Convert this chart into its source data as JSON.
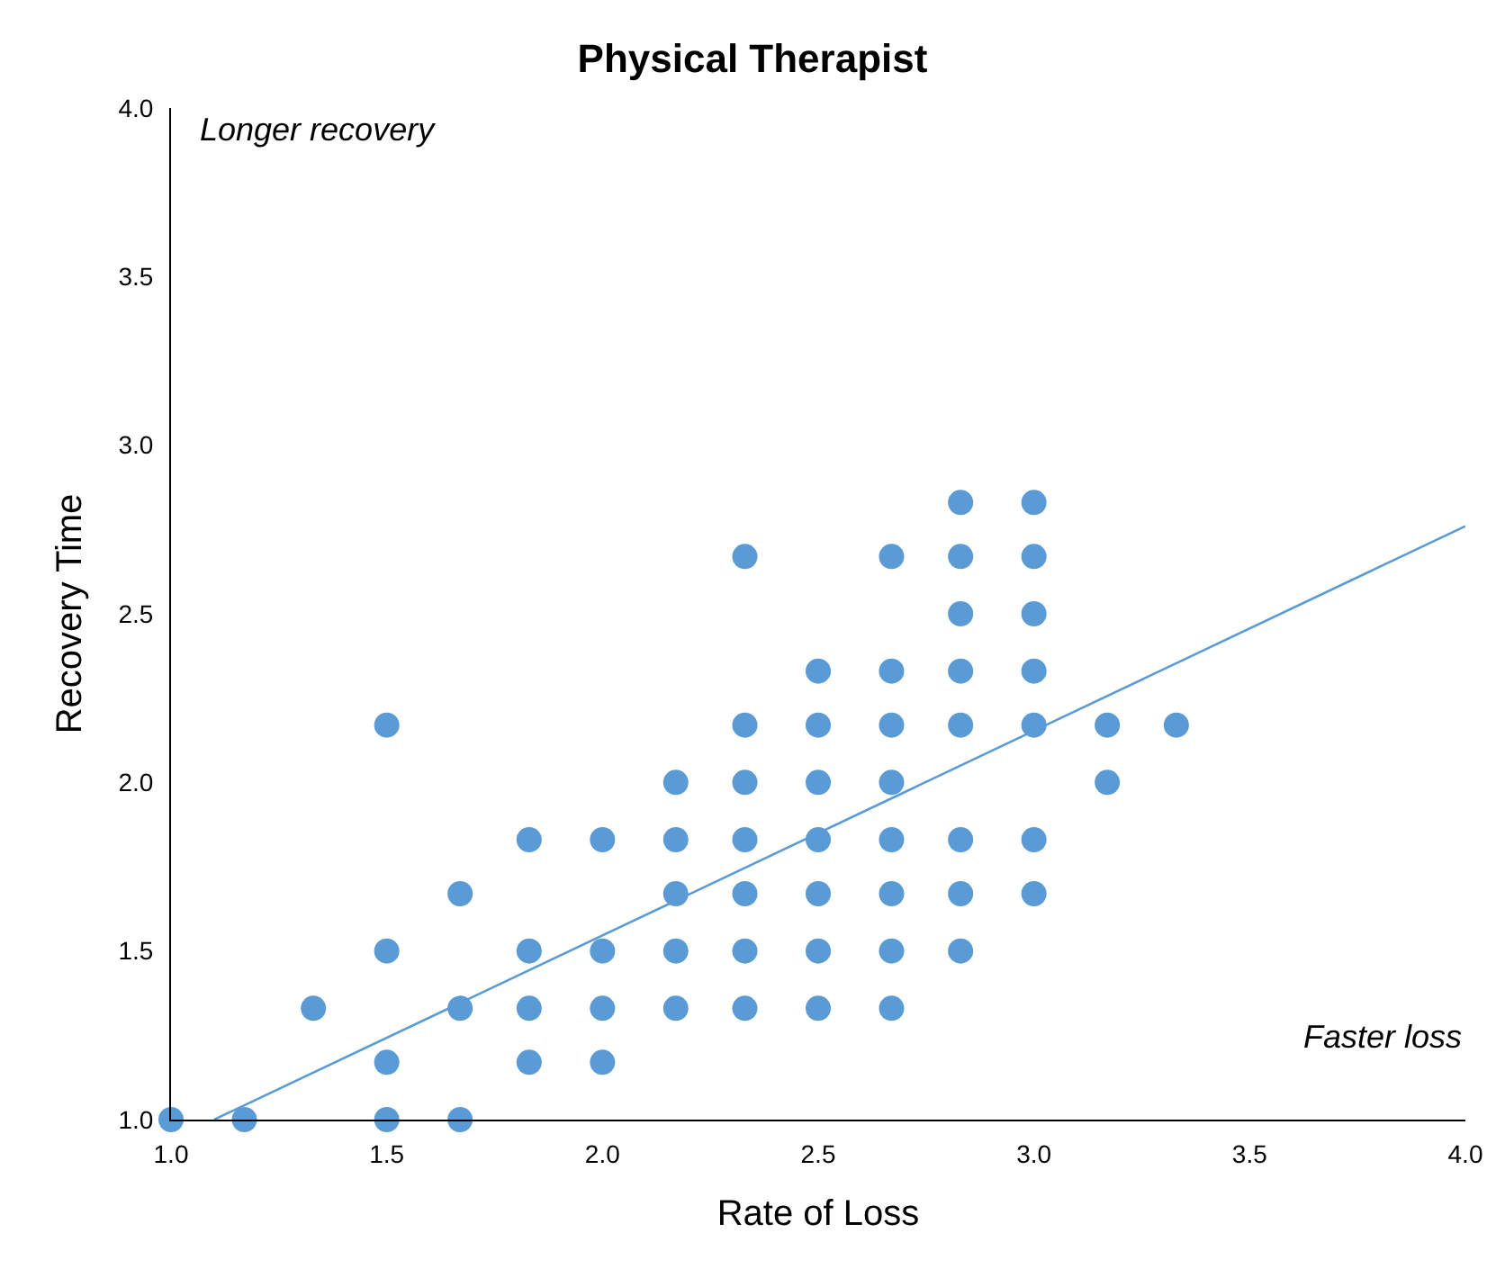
{
  "chart_data": {
    "type": "scatter",
    "title": "Physical Therapist",
    "xlabel": "Rate of Loss",
    "ylabel": "Recovery Time",
    "annotations": [
      "Longer recovery",
      "Faster loss"
    ],
    "series": [
      {
        "color": "#5b9bd5",
        "marker": "circle",
        "x": [
          1.0,
          1.17,
          1.33,
          1.5,
          1.5,
          1.5,
          1.5,
          1.67,
          1.67,
          1.67,
          1.83,
          1.83,
          1.83,
          1.83,
          2.0,
          2.0,
          2.0,
          2.0,
          2.17,
          2.17,
          2.17,
          2.17,
          2.17,
          2.33,
          2.33,
          2.33,
          2.33,
          2.33,
          2.33,
          2.33,
          2.5,
          2.5,
          2.5,
          2.5,
          2.5,
          2.5,
          2.5,
          2.67,
          2.67,
          2.67,
          2.67,
          2.67,
          2.67,
          2.67,
          2.67,
          2.83,
          2.83,
          2.83,
          2.83,
          2.83,
          2.83,
          2.83,
          2.83,
          3.0,
          3.0,
          3.0,
          3.0,
          3.0,
          3.0,
          3.0,
          3.17,
          3.17,
          3.33
        ],
        "values": [
          1.0,
          1.0,
          1.33,
          2.17,
          1.5,
          1.17,
          1.0,
          1.67,
          1.33,
          1.0,
          1.83,
          1.5,
          1.33,
          1.17,
          1.83,
          1.5,
          1.33,
          1.17,
          2.0,
          1.83,
          1.67,
          1.5,
          1.33,
          2.67,
          2.17,
          2.0,
          1.83,
          1.67,
          1.5,
          1.33,
          2.33,
          2.17,
          2.0,
          1.83,
          1.67,
          1.5,
          1.33,
          2.67,
          2.33,
          2.17,
          2.0,
          1.83,
          1.67,
          1.5,
          1.33,
          2.83,
          2.67,
          2.5,
          2.33,
          2.17,
          1.83,
          1.67,
          1.5,
          2.83,
          2.67,
          2.5,
          2.33,
          2.17,
          1.83,
          1.67,
          2.17,
          2.0,
          2.17
        ]
      },
      {
        "type": "line",
        "color": "#5b9bd5",
        "marker": "none",
        "line_style": "solid",
        "x": [
          1.1,
          4.0
        ],
        "values": [
          1.0,
          2.76
        ]
      }
    ],
    "xlim": [
      1.0,
      4.0
    ],
    "ylim": [
      1.0,
      4.0
    ],
    "xticks": [
      {
        "value": 1,
        "label": "1.0"
      },
      {
        "value": 1.5,
        "label": "1.5"
      },
      {
        "value": 2,
        "label": "2.0"
      },
      {
        "value": 2.5,
        "label": "2.5"
      },
      {
        "value": 3,
        "label": "3.0"
      },
      {
        "value": 3.5,
        "label": "3.5"
      },
      {
        "value": 4,
        "label": "4.0"
      }
    ],
    "yticks": [
      {
        "value": 1,
        "label": "1.0"
      },
      {
        "value": 1.5,
        "label": "1.5"
      },
      {
        "value": 2,
        "label": "2.0"
      },
      {
        "value": 2.5,
        "label": "2.5"
      },
      {
        "value": 3,
        "label": "3.0"
      },
      {
        "value": 3.5,
        "label": "3.5"
      },
      {
        "value": 4,
        "label": "4.0"
      }
    ],
    "tick_labels": "xy"
  }
}
